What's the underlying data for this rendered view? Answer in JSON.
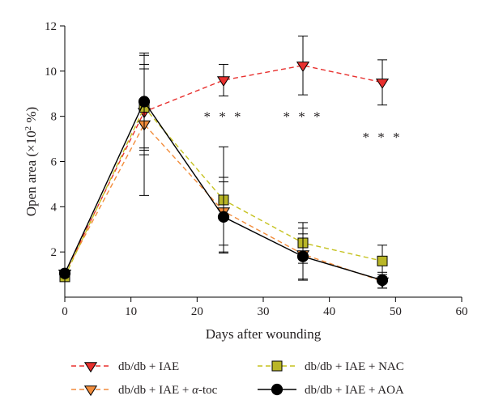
{
  "chart_data": {
    "type": "line",
    "title": "",
    "xlabel": "Days after wounding",
    "ylabel_parts": [
      "Open area (×10",
      "2",
      " %)"
    ],
    "xlim": [
      0,
      60
    ],
    "ylim": [
      0,
      12
    ],
    "x_ticks": [
      0,
      10,
      20,
      30,
      40,
      50,
      60
    ],
    "y_ticks": [
      2,
      4,
      6,
      8,
      10,
      12
    ],
    "grid": false,
    "legend_placement": "bottom",
    "series": [
      {
        "name_parts": [
          "db/db + IAE"
        ],
        "color": "#e8302e",
        "fill": "#e8302e",
        "dash": "dashed",
        "marker": "triangle-down",
        "x": [
          0,
          12,
          24,
          36,
          48
        ],
        "y": [
          1.05,
          8.2,
          9.6,
          10.25,
          9.5
        ],
        "err": [
          0,
          1.9,
          0.7,
          1.3,
          1.0
        ]
      },
      {
        "name_parts": [
          "db/db + IAE + ",
          "α",
          "-toc"
        ],
        "color": "#f28c3b",
        "fill": "#f28c3b",
        "dash": "dashed",
        "marker": "triangle-down",
        "x": [
          0,
          12,
          24,
          36,
          48
        ],
        "y": [
          1.05,
          7.65,
          3.8,
          1.9,
          0.7
        ],
        "err": [
          0,
          3.15,
          1.5,
          1.15,
          0.3
        ]
      },
      {
        "name_parts": [
          "db/db + IAE + NAC"
        ],
        "color": "#c5c21f",
        "fill": "#b9b627",
        "dash": "dashed",
        "marker": "square",
        "x": [
          0,
          12,
          24,
          36,
          48
        ],
        "y": [
          0.9,
          8.4,
          4.3,
          2.4,
          1.6
        ],
        "err": [
          0,
          1.9,
          2.35,
          0.9,
          0.7
        ]
      },
      {
        "name_parts": [
          "db/db + IAE + AOA"
        ],
        "color": "#000000",
        "fill": "#000000",
        "dash": "solid",
        "marker": "circle",
        "x": [
          0,
          12,
          24,
          36,
          48
        ],
        "y": [
          1.05,
          8.65,
          3.55,
          1.8,
          0.75
        ],
        "err": [
          0,
          2.05,
          1.55,
          1.0,
          0.35
        ]
      }
    ],
    "annotations": [
      {
        "text": "* * *",
        "x": 24,
        "y": 8.0
      },
      {
        "text": "* * *",
        "x": 36,
        "y": 8.0
      },
      {
        "text": "* * *",
        "x": 48,
        "y": 7.1
      }
    ]
  }
}
